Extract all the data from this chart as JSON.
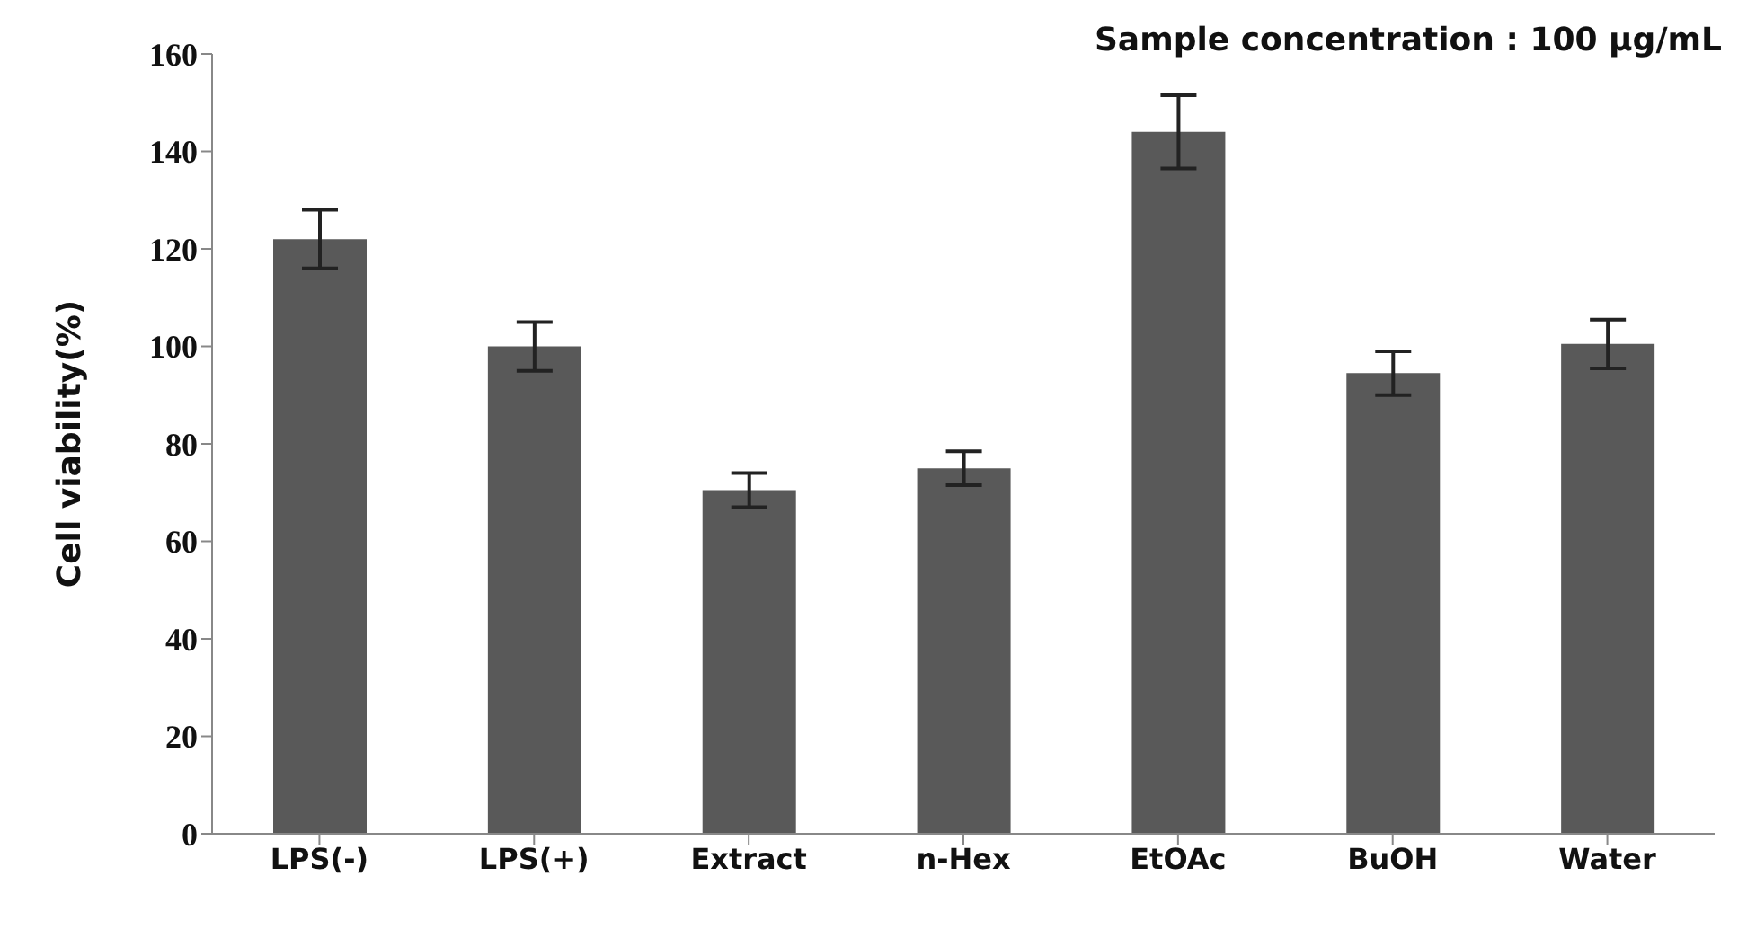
{
  "chart_data": {
    "type": "bar",
    "ylabel": "Cell viability(%)",
    "annotations": [
      "Sample concentration : 100 μg/mL"
    ],
    "categories": [
      "LPS(-)",
      "LPS(+)",
      "Extract",
      "n-Hex",
      "EtOAc",
      "BuOH",
      "Water"
    ],
    "values": [
      122,
      100,
      70.5,
      75,
      144,
      94.5,
      100.5
    ],
    "errors": [
      6,
      5,
      3.5,
      3.5,
      7.5,
      4.5,
      5
    ],
    "color": "#595959",
    "ylim": [
      0,
      160
    ],
    "yticks": [
      0,
      20,
      40,
      60,
      80,
      100,
      120,
      140,
      160
    ],
    "grid": false
  }
}
